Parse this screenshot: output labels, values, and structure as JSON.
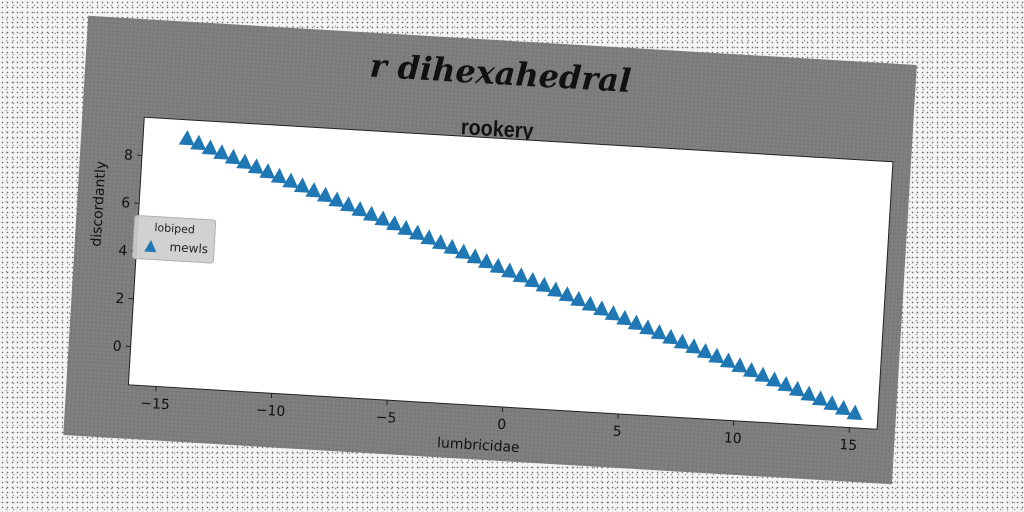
{
  "chart_data": {
    "type": "scatter",
    "suptitle": "r dihexahedral",
    "title": "rookery",
    "xlabel": "lumbricidae",
    "ylabel": "discordantly",
    "xlim": [
      -16.2,
      16.2
    ],
    "ylim": [
      -1.6,
      9.6
    ],
    "x_ticks": [
      -15,
      -10,
      -5,
      0,
      5,
      10,
      15
    ],
    "y_ticks": [
      0,
      2,
      4,
      6,
      8
    ],
    "grid": false,
    "legend": {
      "title": "lobiped",
      "placement": "center-left",
      "entries": [
        "mewls"
      ]
    },
    "series": [
      {
        "name": "mewls",
        "marker": "triangle-up",
        "color": "#1f77b4",
        "x_start": -14.3,
        "x_end": 15.2,
        "n_points": 59,
        "y_at_x_start": 8.8,
        "y_at_x_end": -1.0
      }
    ]
  }
}
